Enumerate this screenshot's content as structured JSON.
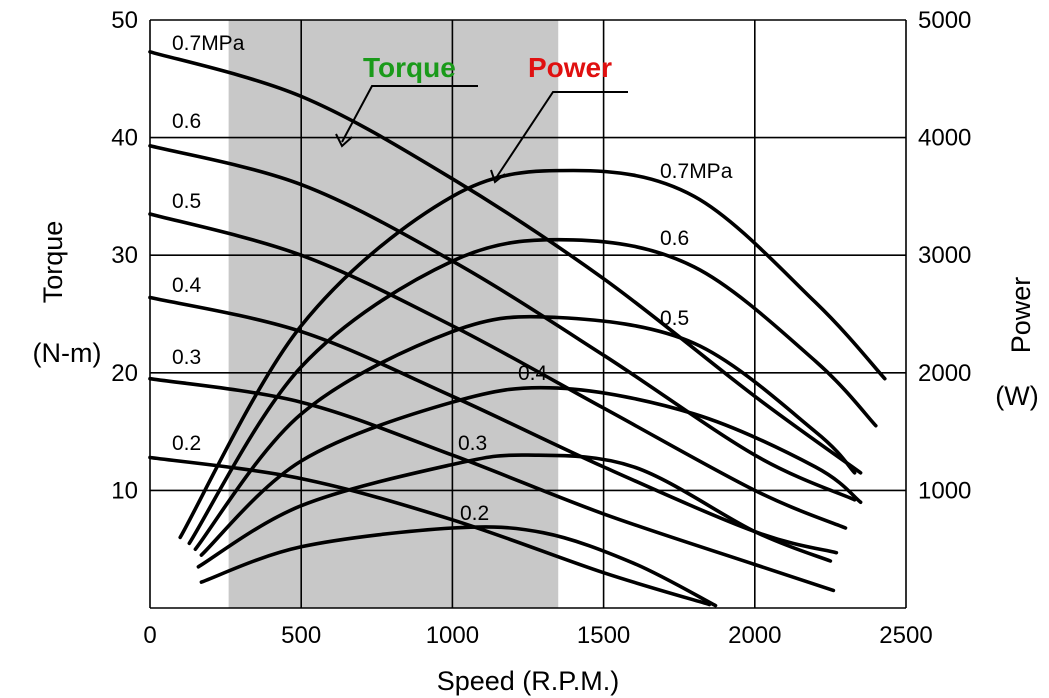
{
  "chart_data": {
    "type": "line",
    "xlabel": "Speed (R.P.M.)",
    "ylabel_left": [
      "Torque",
      "(N-m)"
    ],
    "ylabel_right": [
      "Power",
      "(W)"
    ],
    "xlim": [
      0,
      2500
    ],
    "ylim_left": [
      0,
      50
    ],
    "ylim_right": [
      0,
      5000
    ],
    "x_ticks": [
      0,
      500,
      1000,
      1500,
      2000,
      2500
    ],
    "y_left_ticks": [
      10,
      20,
      30,
      40,
      50
    ],
    "y_right_ticks": [
      1000,
      2000,
      3000,
      4000,
      5000
    ],
    "grid": true,
    "highlight_band": {
      "x_range": [
        260,
        1350
      ],
      "color": "#c8c8c8"
    },
    "callouts": [
      {
        "text": "Torque",
        "color": "#1a9a1a",
        "series_group": "torque"
      },
      {
        "text": "Power",
        "color": "#e01010",
        "series_group": "power"
      }
    ],
    "torque_series": [
      {
        "name": "0.7MPa",
        "x": [
          0,
          500,
          1000,
          1500,
          2000,
          2350
        ],
        "y": [
          47.3,
          43.5,
          36.5,
          28.0,
          18.0,
          11.5
        ]
      },
      {
        "name": "0.6",
        "x": [
          0,
          500,
          1000,
          1500,
          2000,
          2330
        ],
        "y": [
          39.3,
          36.0,
          29.5,
          21.5,
          13.0,
          9.2
        ]
      },
      {
        "name": "0.5",
        "x": [
          0,
          500,
          1000,
          1500,
          2000,
          2300
        ],
        "y": [
          33.5,
          30.0,
          24.0,
          17.0,
          10.0,
          6.8
        ]
      },
      {
        "name": "0.4",
        "x": [
          0,
          500,
          1000,
          1500,
          2000,
          2270
        ],
        "y": [
          26.4,
          23.5,
          18.0,
          12.0,
          6.5,
          4.7
        ]
      },
      {
        "name": "0.3",
        "x": [
          0,
          500,
          1000,
          1500,
          2000,
          2260
        ],
        "y": [
          19.5,
          17.5,
          13.0,
          8.0,
          3.7,
          1.5
        ]
      },
      {
        "name": "0.2",
        "x": [
          0,
          500,
          1000,
          1500,
          1850
        ],
        "y": [
          12.8,
          11.0,
          7.5,
          3.0,
          0.3
        ]
      }
    ],
    "power_series": [
      {
        "name": "0.7MPa",
        "x": [
          100,
          500,
          1000,
          1400,
          1800,
          2200,
          2430
        ],
        "y": [
          600,
          2400,
          3500,
          3720,
          3500,
          2600,
          1950
        ]
      },
      {
        "name": "0.6",
        "x": [
          130,
          500,
          1000,
          1400,
          1800,
          2200,
          2400
        ],
        "y": [
          550,
          2050,
          2950,
          3130,
          2900,
          2100,
          1550
        ]
      },
      {
        "name": "0.5",
        "x": [
          150,
          500,
          1000,
          1350,
          1800,
          2200,
          2330
        ],
        "y": [
          500,
          1650,
          2350,
          2470,
          2250,
          1500,
          1150
        ]
      },
      {
        "name": "0.4",
        "x": [
          170,
          500,
          1000,
          1350,
          1800,
          2200,
          2350
        ],
        "y": [
          450,
          1250,
          1750,
          1870,
          1650,
          1200,
          900
        ]
      },
      {
        "name": "0.3",
        "x": [
          160,
          500,
          1000,
          1250,
          1600,
          2000,
          2250
        ],
        "y": [
          350,
          870,
          1220,
          1300,
          1200,
          650,
          400
        ]
      },
      {
        "name": "0.2",
        "x": [
          170,
          500,
          1000,
          1300,
          1600,
          1870
        ],
        "y": [
          220,
          520,
          680,
          640,
          380,
          20
        ]
      }
    ],
    "torque_labels": [
      "0.7MPa",
      "0.6",
      "0.5",
      "0.4",
      "0.3",
      "0.2"
    ],
    "power_labels": [
      "0.7MPa",
      "0.6",
      "0.5",
      "0.4",
      "0.3",
      "0.2"
    ]
  }
}
